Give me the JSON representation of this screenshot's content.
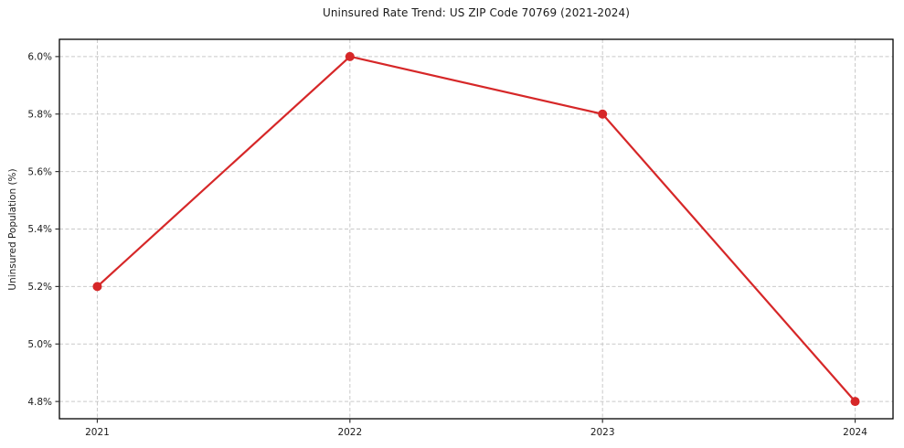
{
  "chart_data": {
    "type": "line",
    "title": "Uninsured Rate Trend: US ZIP Code 70769 (2021-2024)",
    "xlabel": "",
    "ylabel": "Uninsured Population (%)",
    "x": [
      2021,
      2022,
      2023,
      2024
    ],
    "xtick_labels": [
      "2021",
      "2022",
      "2023",
      "2024"
    ],
    "series": [
      {
        "name": "Uninsured rate",
        "values": [
          5.2,
          6.0,
          5.8,
          4.8
        ]
      }
    ],
    "ytick_values": [
      4.8,
      5.0,
      5.2,
      5.4,
      5.6,
      5.8,
      6.0
    ],
    "ytick_labels": [
      "4.8%",
      "5.0%",
      "5.2%",
      "5.4%",
      "5.6%",
      "5.8%",
      "6.0%"
    ],
    "xlim": [
      2020.85,
      2024.15
    ],
    "ylim": [
      4.74,
      6.06
    ],
    "grid": true,
    "grid_style": "dashed",
    "legend": "none",
    "line_color": "#d62728",
    "marker": "circle",
    "grid_color": "#c9c9c9",
    "spine_color": "#000000",
    "tick_color": "#333333",
    "background_color": "#ffffff"
  }
}
